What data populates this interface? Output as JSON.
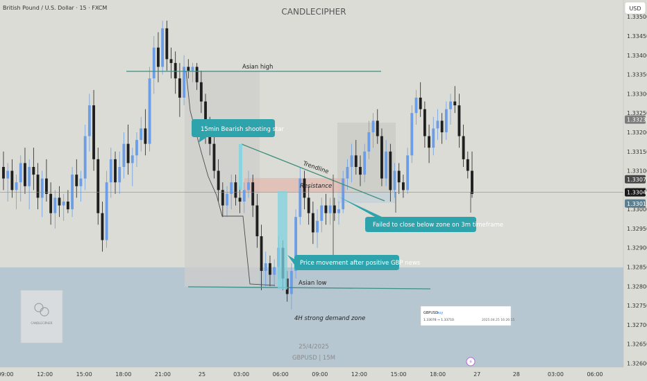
{
  "header": {
    "symbol_title": "British Pound / U.S. Dollar · 15 · FXCM",
    "watermark": "CANDLECIPHER",
    "currency_button": "USD"
  },
  "chart_data": {
    "type": "candlestick",
    "symbol": "GBPUSD",
    "timeframe": "15",
    "ylim": [
      1.3259,
      1.3354
    ],
    "price_ticks": [
      "1.33500",
      "1.33450",
      "1.33400",
      "1.33350",
      "1.33300",
      "1.33250",
      "1.33200",
      "1.33150",
      "1.33100",
      "1.33050",
      "1.33000",
      "1.32950",
      "1.32900",
      "1.32850",
      "1.32800",
      "1.32750",
      "1.32700",
      "1.32650",
      "1.32600"
    ],
    "time_ticks": [
      "09:00",
      "12:00",
      "15:00",
      "18:00",
      "21:00",
      "25",
      "03:00",
      "06:00",
      "09:00",
      "12:00",
      "15:00",
      "18:00",
      "27",
      "28",
      "03:00",
      "06:00"
    ],
    "price_tags": [
      {
        "value": "1.33233",
        "color": "#7c7c7c"
      },
      {
        "value": "1.33078",
        "color": "#4a4a4a"
      },
      {
        "value": "1.33044",
        "color": "#1a1a1a"
      },
      {
        "value": "1.33015",
        "color": "#5b7f8e"
      }
    ],
    "current_price": 1.33044,
    "candles": [
      [
        1.3311,
        1.3315,
        1.3305,
        1.3308
      ],
      [
        1.3308,
        1.3312,
        1.3302,
        1.331
      ],
      [
        1.331,
        1.3313,
        1.3303,
        1.3305
      ],
      [
        1.3305,
        1.3309,
        1.33,
        1.3307
      ],
      [
        1.3307,
        1.3314,
        1.3302,
        1.3312
      ],
      [
        1.3312,
        1.3316,
        1.3304,
        1.3306
      ],
      [
        1.3306,
        1.3313,
        1.33,
        1.3311
      ],
      [
        1.3311,
        1.3316,
        1.3305,
        1.3309
      ],
      [
        1.3309,
        1.3312,
        1.33,
        1.3303
      ],
      [
        1.3303,
        1.331,
        1.3298,
        1.3308
      ],
      [
        1.3308,
        1.3313,
        1.3302,
        1.3304
      ],
      [
        1.3304,
        1.3307,
        1.3296,
        1.3299
      ],
      [
        1.3299,
        1.3305,
        1.3295,
        1.3303
      ],
      [
        1.3303,
        1.3306,
        1.3298,
        1.3301
      ],
      [
        1.3301,
        1.3304,
        1.3297,
        1.3302
      ],
      [
        1.3302,
        1.3305,
        1.3299,
        1.33
      ],
      [
        1.33,
        1.3311,
        1.3298,
        1.3309
      ],
      [
        1.3309,
        1.3313,
        1.3303,
        1.3306
      ],
      [
        1.3306,
        1.331,
        1.3302,
        1.3308
      ],
      [
        1.3308,
        1.3322,
        1.3305,
        1.3319
      ],
      [
        1.3319,
        1.333,
        1.3315,
        1.3327
      ],
      [
        1.3327,
        1.3331,
        1.331,
        1.3313
      ],
      [
        1.3313,
        1.3316,
        1.3296,
        1.3299
      ],
      [
        1.3299,
        1.3302,
        1.3289,
        1.3292
      ],
      [
        1.3292,
        1.331,
        1.329,
        1.3307
      ],
      [
        1.3307,
        1.3316,
        1.3303,
        1.3313
      ],
      [
        1.3313,
        1.3315,
        1.3304,
        1.3307
      ],
      [
        1.3307,
        1.3315,
        1.3304,
        1.3311
      ],
      [
        1.3311,
        1.332,
        1.3308,
        1.3317
      ],
      [
        1.3317,
        1.3322,
        1.3309,
        1.3312
      ],
      [
        1.3312,
        1.3316,
        1.3306,
        1.3314
      ],
      [
        1.3314,
        1.332,
        1.3311,
        1.3318
      ],
      [
        1.3318,
        1.3324,
        1.3315,
        1.3321
      ],
      [
        1.3321,
        1.3326,
        1.3314,
        1.3317
      ],
      [
        1.3317,
        1.3337,
        1.3315,
        1.3334
      ],
      [
        1.3334,
        1.3345,
        1.333,
        1.3342
      ],
      [
        1.3342,
        1.3346,
        1.3333,
        1.3337
      ],
      [
        1.3337,
        1.3349,
        1.3335,
        1.3347
      ],
      [
        1.3347,
        1.3349,
        1.3336,
        1.3339
      ],
      [
        1.3339,
        1.3342,
        1.3334,
        1.3338
      ],
      [
        1.3338,
        1.3341,
        1.333,
        1.3334
      ],
      [
        1.3334,
        1.3338,
        1.3324,
        1.3329
      ],
      [
        1.3329,
        1.334,
        1.3327,
        1.3337
      ],
      [
        1.3337,
        1.3339,
        1.3334,
        1.3336
      ],
      [
        1.3336,
        1.3338,
        1.3333,
        1.3337
      ],
      [
        1.3337,
        1.3338,
        1.3331,
        1.3333
      ],
      [
        1.3333,
        1.3336,
        1.3325,
        1.3328
      ],
      [
        1.3328,
        1.333,
        1.3317,
        1.332
      ],
      [
        1.332,
        1.3324,
        1.3314,
        1.3317
      ],
      [
        1.3317,
        1.3319,
        1.3308,
        1.331
      ],
      [
        1.331,
        1.3313,
        1.3302,
        1.3305
      ],
      [
        1.3305,
        1.3307,
        1.3298,
        1.3301
      ],
      [
        1.3301,
        1.3306,
        1.3298,
        1.3304
      ],
      [
        1.3304,
        1.3309,
        1.33,
        1.3307
      ],
      [
        1.3307,
        1.3309,
        1.3301,
        1.3303
      ],
      [
        1.3303,
        1.3306,
        1.3299,
        1.3302
      ],
      [
        1.3302,
        1.3307,
        1.3299,
        1.3305
      ],
      [
        1.3305,
        1.331,
        1.3303,
        1.3307
      ],
      [
        1.3307,
        1.3309,
        1.3298,
        1.3301
      ],
      [
        1.3301,
        1.3304,
        1.329,
        1.3293
      ],
      [
        1.3293,
        1.3296,
        1.3279,
        1.3284
      ],
      [
        1.3284,
        1.3289,
        1.328,
        1.3286
      ],
      [
        1.3286,
        1.3288,
        1.328,
        1.3283
      ],
      [
        1.3283,
        1.3287,
        1.328,
        1.3285
      ],
      [
        1.3285,
        1.3293,
        1.3282,
        1.329
      ],
      [
        1.329,
        1.3292,
        1.3279,
        1.3282
      ],
      [
        1.3282,
        1.3284,
        1.3276,
        1.3278
      ],
      [
        1.3278,
        1.3286,
        1.3274,
        1.3284
      ],
      [
        1.3284,
        1.33,
        1.3282,
        1.3298
      ],
      [
        1.3298,
        1.3311,
        1.3296,
        1.3308
      ],
      [
        1.3308,
        1.331,
        1.33,
        1.3303
      ],
      [
        1.3303,
        1.3306,
        1.3296,
        1.3299
      ],
      [
        1.3299,
        1.3302,
        1.3291,
        1.3294
      ],
      [
        1.3294,
        1.33,
        1.329,
        1.3297
      ],
      [
        1.3297,
        1.3303,
        1.3294,
        1.3301
      ],
      [
        1.3301,
        1.3304,
        1.3296,
        1.3299
      ],
      [
        1.3299,
        1.3303,
        1.3296,
        1.3301
      ],
      [
        1.3301,
        1.3303,
        1.3297,
        1.3299
      ],
      [
        1.3299,
        1.3302,
        1.3296,
        1.33
      ],
      [
        1.33,
        1.331,
        1.3299,
        1.3308
      ],
      [
        1.3308,
        1.3313,
        1.3305,
        1.3311
      ],
      [
        1.3311,
        1.3317,
        1.3307,
        1.3314
      ],
      [
        1.3314,
        1.3318,
        1.3309,
        1.3311
      ],
      [
        1.3311,
        1.3314,
        1.3306,
        1.3309
      ],
      [
        1.3309,
        1.3317,
        1.3307,
        1.3315
      ],
      [
        1.3315,
        1.3323,
        1.3313,
        1.332
      ],
      [
        1.332,
        1.3325,
        1.3316,
        1.3323
      ],
      [
        1.3323,
        1.3326,
        1.3317,
        1.3319
      ],
      [
        1.3319,
        1.3321,
        1.3306,
        1.3308
      ],
      [
        1.3308,
        1.3318,
        1.3306,
        1.3315
      ],
      [
        1.3315,
        1.3317,
        1.3302,
        1.3305
      ],
      [
        1.3305,
        1.3312,
        1.3303,
        1.331
      ],
      [
        1.331,
        1.3312,
        1.3304,
        1.3307
      ],
      [
        1.3307,
        1.3309,
        1.3303,
        1.3305
      ],
      [
        1.3305,
        1.3316,
        1.3304,
        1.3314
      ],
      [
        1.3314,
        1.3327,
        1.3312,
        1.3325
      ],
      [
        1.3325,
        1.3331,
        1.3322,
        1.3329
      ],
      [
        1.3329,
        1.3333,
        1.3324,
        1.3326
      ],
      [
        1.3326,
        1.3328,
        1.3316,
        1.3319
      ],
      [
        1.3319,
        1.3322,
        1.3312,
        1.3316
      ],
      [
        1.3316,
        1.3324,
        1.3314,
        1.3321
      ],
      [
        1.3321,
        1.3326,
        1.3318,
        1.3323
      ],
      [
        1.3323,
        1.3325,
        1.3317,
        1.332
      ],
      [
        1.332,
        1.3328,
        1.3318,
        1.3326
      ],
      [
        1.3326,
        1.333,
        1.3322,
        1.3328
      ],
      [
        1.3328,
        1.3332,
        1.3325,
        1.3327
      ],
      [
        1.3327,
        1.333,
        1.3316,
        1.3319
      ],
      [
        1.3319,
        1.3322,
        1.3311,
        1.3313
      ],
      [
        1.3313,
        1.3315,
        1.3308,
        1.331
      ],
      [
        1.331,
        1.3315,
        1.3303,
        1.3304
      ]
    ],
    "annotations": {
      "asian_high": "Asian high",
      "asian_low": "Asian low",
      "trendline": "Trendline",
      "resistance": "Resistance",
      "demand_zone": "4H strong demand zone",
      "callout_shooting_star": "15min Bearish shooting star",
      "callout_failed_close": "Failed to close below zone on 3m timeframe",
      "callout_gbp_news": "Price movement after positive GBP news"
    }
  },
  "footer": {
    "date": "25/4/2025",
    "symbol_tf": "GBPUSD | 15M"
  },
  "logo": {
    "text": "CANDLECIPHER"
  },
  "mini_card": {
    "title": "GBPUSD",
    "side": "buy",
    "prices": "1.33078 → 1.33710",
    "timestamp": "2025.04.25 16:26:15"
  },
  "colors": {
    "background": "#dcdcd6",
    "up_candle": "#6b9ee6",
    "down_candle": "#1f1f1f",
    "callout": "#2fa3ab",
    "demand_zone": "#b7c7d1"
  }
}
